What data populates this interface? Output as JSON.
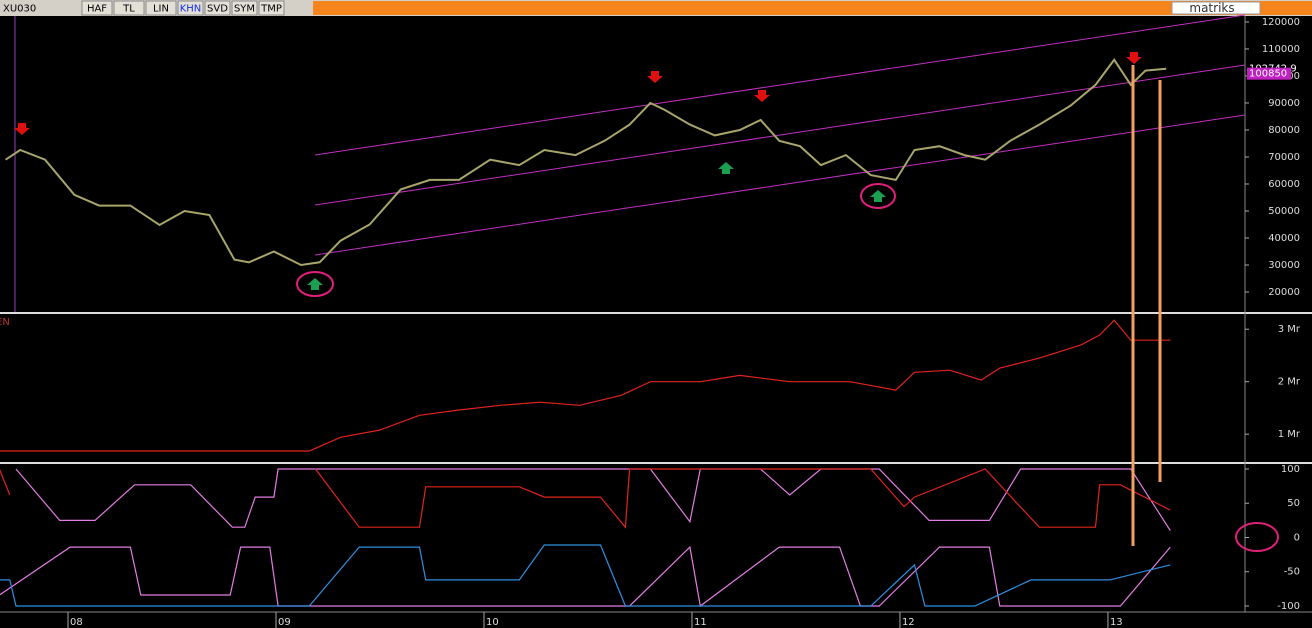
{
  "toolbar": {
    "symbol": "XU030",
    "buttons": [
      "HAF",
      "TL",
      "LIN",
      "KHN",
      "SVD",
      "SYM",
      "TMP"
    ],
    "brand": "matriks"
  },
  "chart_data": [
    {
      "type": "line",
      "color": "#a8a56a",
      "xlim": [
        2007.673,
        2013.659
      ],
      "ylim": [
        12600,
        122200
      ],
      "yticks": [
        20000,
        30000,
        40000,
        50000,
        60000,
        70000,
        80000,
        90000,
        100000,
        110000,
        120000
      ],
      "price_markers": [
        102742.9,
        100850
      ],
      "series": [
        {
          "color": "#a8a56a",
          "x": [
            2007.7,
            2007.77,
            2007.89,
            2008.03,
            2008.15,
            2008.3,
            2008.44,
            2008.56,
            2008.68,
            2008.8,
            2008.87,
            2008.99,
            2009.12,
            2009.21,
            2009.31,
            2009.45,
            2009.6,
            2009.74,
            2009.88,
            2010.03,
            2010.17,
            2010.29,
            2010.44,
            2010.58,
            2010.7,
            2010.8,
            2010.87,
            2010.99,
            2011.11,
            2011.23,
            2011.33,
            2011.42,
            2011.52,
            2011.62,
            2011.74,
            2011.86,
            2011.98,
            2012.07,
            2012.19,
            2012.31,
            2012.41,
            2012.53,
            2012.67,
            2012.82,
            2012.94,
            2013.03,
            2013.11,
            2013.18,
            2013.28
          ],
          "values": [
            69000,
            72600,
            69000,
            56000,
            52000,
            52000,
            44800,
            50000,
            48500,
            32000,
            31000,
            35000,
            30000,
            31000,
            39000,
            45000,
            58000,
            61500,
            61500,
            69000,
            67000,
            72600,
            70700,
            76000,
            82000,
            90000,
            87400,
            82000,
            78000,
            80000,
            83700,
            76000,
            74000,
            67000,
            70700,
            63300,
            61500,
            72600,
            74000,
            70700,
            69000,
            76000,
            82000,
            89000,
            96700,
            106000,
            96700,
            102000,
            102700
          ]
        }
      ]
    },
    {
      "type": "line",
      "title": "EN",
      "xlim": [
        2007.673,
        2013.659
      ],
      "ylim": [
        0.47,
        3.29
      ],
      "yticks": [
        {
          "value": 1,
          "label": "1 Mr"
        },
        {
          "value": 2,
          "label": "2 Mr"
        },
        {
          "value": 3,
          "label": "3 Mr"
        }
      ],
      "series": [
        {
          "color": "#e0241c",
          "x": [
            2007.67,
            2009.16,
            2009.31,
            2009.5,
            2009.69,
            2009.88,
            2010.08,
            2010.27,
            2010.46,
            2010.66,
            2010.8,
            2011.04,
            2011.23,
            2011.47,
            2011.76,
            2011.98,
            2012.07,
            2012.24,
            2012.39,
            2012.48,
            2012.67,
            2012.87,
            2012.96,
            2013.03,
            2013.11,
            2013.3
          ],
          "values": [
            0.68,
            0.68,
            0.94,
            1.08,
            1.36,
            1.46,
            1.55,
            1.61,
            1.55,
            1.74,
            2.0,
            2.0,
            2.12,
            2.0,
            2.0,
            1.84,
            2.18,
            2.22,
            2.03,
            2.26,
            2.45,
            2.7,
            2.89,
            3.17,
            2.79,
            2.79
          ]
        }
      ]
    },
    {
      "type": "line",
      "xlim": [
        2007.673,
        2013.659
      ],
      "ylim": [
        -108.8,
        107.3
      ],
      "yticks": [
        -100,
        -50,
        0,
        50,
        100
      ],
      "xticks": [
        {
          "value": 2008,
          "label": "08"
        },
        {
          "value": 2009,
          "label": "09"
        },
        {
          "value": 2010,
          "label": "10"
        },
        {
          "value": 2011,
          "label": "11"
        },
        {
          "value": 2012,
          "label": "12"
        },
        {
          "value": 2013,
          "label": "13"
        }
      ],
      "series": [
        {
          "color": "#e37de3",
          "x": [
            2007.75,
            2007.96,
            2008.13,
            2008.32,
            2008.59,
            2008.79,
            2008.85,
            2008.9,
            2008.99,
            2009.01,
            2010.8,
            2010.99,
            2011.04,
            2011.33,
            2011.47,
            2011.62,
            2011.9,
            2012.14,
            2012.43,
            2012.58,
            2013.11,
            2013.3
          ],
          "values": [
            100,
            25,
            25,
            77,
            77,
            15,
            15,
            59,
            59,
            100,
            100,
            23,
            100,
            100,
            62,
            100,
            100,
            25,
            25,
            100,
            100,
            10
          ]
        },
        {
          "color": "#e0241c",
          "x": [
            2007.67,
            2007.72,
            2007.75,
            2009.19,
            2009.4,
            2009.69,
            2009.72,
            2010.17,
            2010.29,
            2010.56,
            2010.68,
            2010.7,
            2010.8,
            2011.86,
            2012.02,
            2012.07,
            2012.41,
            2012.67,
            2012.94,
            2012.96,
            2013.06,
            2013.3
          ],
          "values": [
            100,
            62,
            null,
            100,
            15,
            15,
            74,
            74,
            59,
            59,
            15,
            100,
            100,
            100,
            45,
            59,
            100,
            15,
            15,
            77,
            77,
            40
          ]
        },
        {
          "color": "#e37de3",
          "x": [
            2007.67,
            2008.01,
            2008.3,
            2008.35,
            2008.78,
            2008.83,
            2008.97,
            2009.01,
            2010.7,
            2010.99,
            2011.04,
            2011.42,
            2011.71,
            2011.81,
            2011.9,
            2012.19,
            2012.43,
            2012.48,
            2013.06,
            2013.3
          ],
          "values": [
            -84,
            -14,
            -14,
            -84,
            -84,
            -14,
            -14,
            -100,
            -100,
            -14,
            -100,
            -14,
            -14,
            -100,
            -100,
            -14,
            -14,
            -100,
            -100,
            -14
          ]
        },
        {
          "color": "#2f8fe0",
          "x": [
            2007.67,
            2007.72,
            2007.75,
            2009.16,
            2009.4,
            2009.69,
            2009.72,
            2010.17,
            2010.29,
            2010.56,
            2010.68,
            2011.86,
            2012.07,
            2012.12,
            2012.36,
            2012.63,
            2013.01,
            2013.3
          ],
          "values": [
            -62,
            -62,
            -100,
            -100,
            -14,
            -14,
            -62,
            -62,
            -11,
            -11,
            -100,
            -100,
            -40,
            -100,
            -100,
            -62,
            -62,
            -40
          ]
        }
      ]
    }
  ]
}
